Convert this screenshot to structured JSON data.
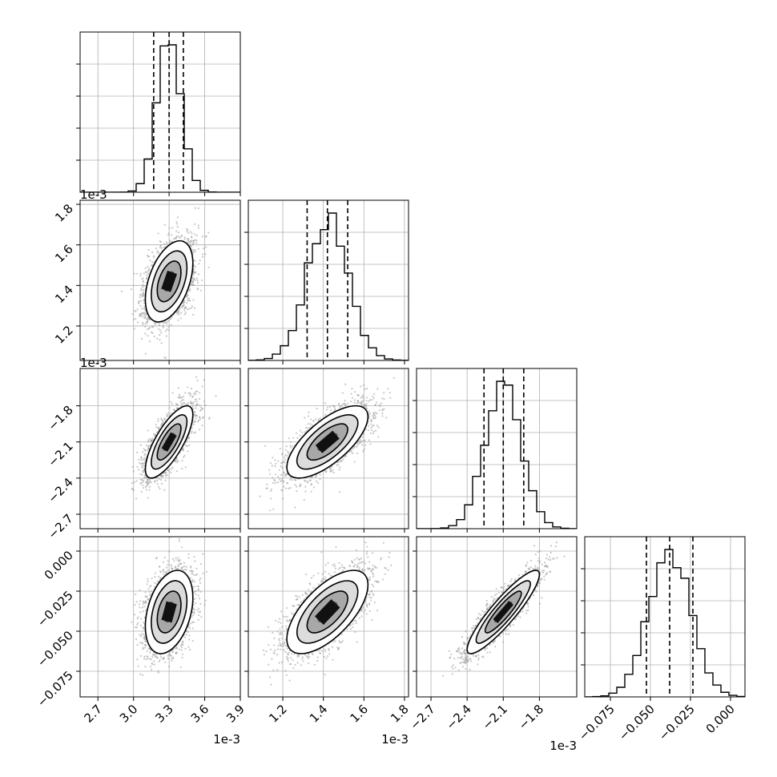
{
  "chart_data": {
    "type": "corner",
    "grid": true,
    "colors": {
      "marks": "#000000",
      "scatter": "#9a9a9a",
      "grid": "#b0b0b0"
    },
    "parameters": [
      {
        "name": "",
        "mean": 0.0033,
        "sd": 0.0001,
        "offset_label": "1e-3",
        "range": [
          0.00255,
          0.0039
        ],
        "ticks": [
          0.0027,
          0.003,
          0.0033,
          0.0036,
          0.0039
        ],
        "tick_labels": [
          "2.7",
          "3.0",
          "3.3",
          "3.6",
          "3.9"
        ],
        "quantiles": [
          0.00317,
          0.0033,
          0.00342
        ]
      },
      {
        "name": "",
        "mean": 0.00142,
        "sd": 0.0001,
        "offset_label": "1e-3",
        "range": [
          0.00103,
          0.00182
        ],
        "ticks": [
          0.0012,
          0.0014,
          0.0016,
          0.0018
        ],
        "tick_labels": [
          "1.2",
          "1.4",
          "1.6",
          "1.8"
        ],
        "quantiles": [
          0.00132,
          0.00142,
          0.00152
        ]
      },
      {
        "name": "",
        "mean": -0.0021,
        "sd": 0.00015,
        "offset_label": "1e-3",
        "range": [
          -0.00282,
          -0.00149
        ],
        "ticks": [
          -0.0027,
          -0.0024,
          -0.0021,
          -0.0018
        ],
        "tick_labels": [
          "−2.7",
          "−2.4",
          "−2.1",
          "−1.8"
        ],
        "quantiles": [
          -0.00226,
          -0.0021,
          -0.00193
        ]
      },
      {
        "name": "",
        "mean": -0.038,
        "sd": 0.013,
        "offset_label": "",
        "range": [
          -0.091,
          0.009
        ],
        "ticks": [
          -0.075,
          -0.05,
          -0.025,
          0.0
        ],
        "tick_labels": [
          "−0.075",
          "−0.050",
          "−0.025",
          "0.000"
        ],
        "quantiles": [
          -0.0525,
          -0.038,
          -0.0235
        ]
      }
    ],
    "correlations": [
      [
        1.0,
        0.45,
        0.75,
        0.35
      ],
      [
        0.45,
        1.0,
        0.7,
        0.65
      ],
      [
        0.75,
        0.7,
        1.0,
        0.9
      ],
      [
        0.35,
        0.65,
        0.9,
        1.0
      ]
    ],
    "histogram_bins": 20,
    "contour_levels": [
      0.5,
      1.0,
      1.5,
      2.0
    ],
    "scatter_points_per_panel": 2600
  }
}
